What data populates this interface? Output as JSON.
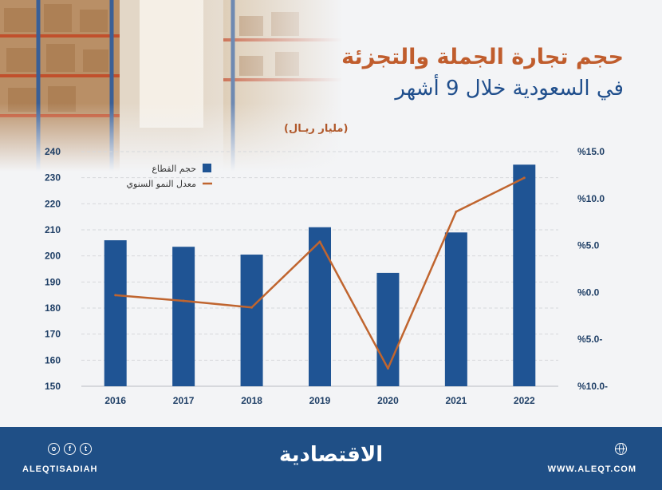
{
  "title": {
    "line1": "حجم تجارة الجملة والتجزئة",
    "line2": "في السعودية خلال 9 أشهر"
  },
  "unit_label": "(مليار ريـال)",
  "colors": {
    "bar": "#1f5494",
    "line": "#c0652f",
    "title_accent": "#c05d2d",
    "title_blue": "#1f4e8c",
    "footer_bg": "#1f4f86"
  },
  "chart_data": {
    "type": "bar",
    "categories": [
      "2016",
      "2017",
      "2018",
      "2019",
      "2020",
      "2021",
      "2022"
    ],
    "series": [
      {
        "name": "حجم القطاع",
        "type": "bar",
        "axis": "left",
        "values": [
          206,
          203.5,
          200.5,
          211,
          193.5,
          209,
          235
        ]
      },
      {
        "name": "معدل النمو السنوي",
        "type": "line",
        "axis": "right",
        "values": [
          -0.3,
          -0.9,
          -1.6,
          5.4,
          -8.1,
          8.6,
          12.2
        ]
      }
    ],
    "left_axis": {
      "ylim": [
        150,
        240
      ],
      "ticks": [
        "150",
        "160",
        "170",
        "180",
        "190",
        "200",
        "210",
        "220",
        "230",
        "240"
      ]
    },
    "right_axis": {
      "ylim": [
        -10,
        15
      ],
      "ticks": [
        "%10.0-",
        "%5.0-",
        "%0.0",
        "%5.0",
        "%10.0",
        "%15.0"
      ]
    },
    "legend": "top-left",
    "grid": true
  },
  "footer": {
    "handle": "ALEQTISADIAH",
    "site": "WWW.ALEQT.COM",
    "brand": "الاقتصادية",
    "social_icons": [
      "instagram-icon",
      "facebook-icon",
      "twitter-icon"
    ],
    "site_icon": "globe-icon"
  }
}
